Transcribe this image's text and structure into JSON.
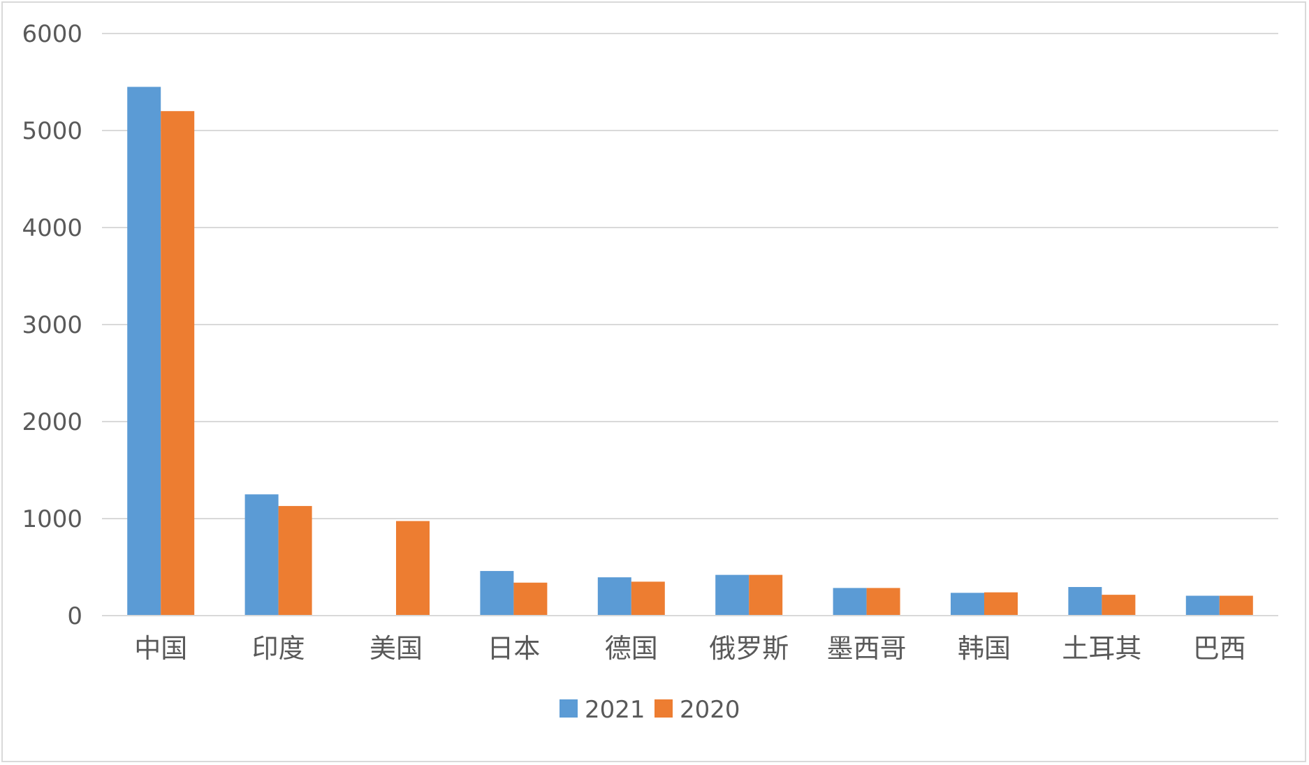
{
  "chart_data": {
    "type": "bar",
    "title": "",
    "xlabel": "",
    "ylabel": "",
    "categories": [
      "中国",
      "印度",
      "美国",
      "日本",
      "德国",
      "俄罗斯",
      "墨西哥",
      "韩国",
      "土耳其",
      "巴西"
    ],
    "series": [
      {
        "name": "2021",
        "color": "#5b9bd5",
        "values": [
          5450,
          1250,
          null,
          460,
          395,
          420,
          285,
          235,
          295,
          205
        ]
      },
      {
        "name": "2020",
        "color": "#ed7d31",
        "values": [
          5200,
          1130,
          975,
          340,
          350,
          420,
          285,
          240,
          215,
          205
        ]
      }
    ],
    "ylim": [
      0,
      6000
    ],
    "yticks": [
      "0",
      "1000",
      "2000",
      "3000",
      "4000",
      "5000",
      "6000"
    ],
    "grid": true,
    "legend": "bottom"
  }
}
